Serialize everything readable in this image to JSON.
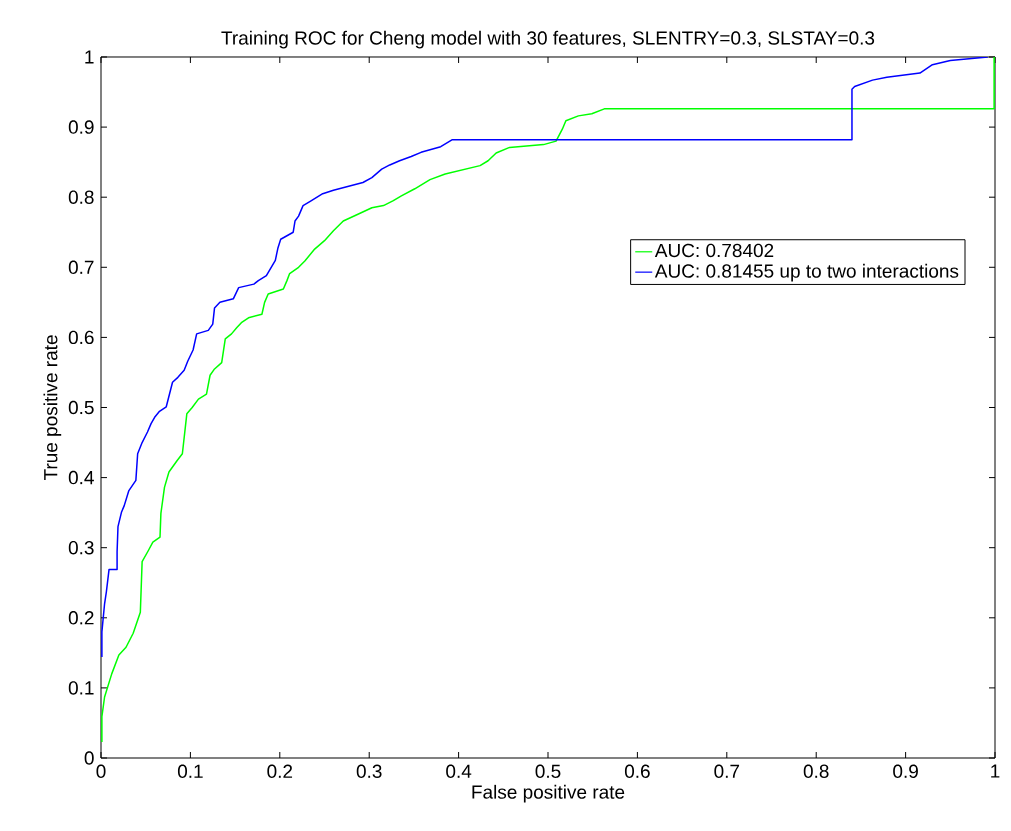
{
  "chart_data": {
    "type": "line",
    "title": "Training ROC  for Cheng model with 30 features, SLENTRY=0.3, SLSTAY=0.3",
    "xlabel": "False positive rate",
    "ylabel": "True positive rate",
    "xlim": [
      0,
      1
    ],
    "ylim": [
      0,
      1
    ],
    "xticks": [
      0,
      0.1,
      0.2,
      0.3,
      0.4,
      0.5,
      0.6,
      0.7,
      0.8,
      0.9,
      1
    ],
    "yticks": [
      0,
      0.1,
      0.2,
      0.3,
      0.4,
      0.5,
      0.6,
      0.7,
      0.8,
      0.9,
      1
    ],
    "legend": "top right",
    "grid": false,
    "marker": "none",
    "line_style": "solid",
    "series": [
      {
        "name": "AUC: 0.78402",
        "color": "#00ff00",
        "x": [
          0.001,
          0.001,
          0.004,
          0.012,
          0.02,
          0.028,
          0.036,
          0.044,
          0.046,
          0.053,
          0.058,
          0.066,
          0.067,
          0.071,
          0.076,
          0.085,
          0.091,
          0.096,
          0.102,
          0.109,
          0.118,
          0.122,
          0.127,
          0.135,
          0.139,
          0.146,
          0.152,
          0.157,
          0.165,
          0.18,
          0.183,
          0.187,
          0.204,
          0.208,
          0.211,
          0.221,
          0.228,
          0.239,
          0.25,
          0.26,
          0.271,
          0.288,
          0.303,
          0.316,
          0.327,
          0.336,
          0.351,
          0.368,
          0.385,
          0.424,
          0.433,
          0.442,
          0.457,
          0.495,
          0.509,
          0.516,
          0.52,
          0.534,
          0.549,
          0.563,
          0.999,
          0.999
        ],
        "values": [
          0.023,
          0.059,
          0.087,
          0.12,
          0.147,
          0.158,
          0.178,
          0.208,
          0.28,
          0.296,
          0.308,
          0.315,
          0.349,
          0.386,
          0.408,
          0.424,
          0.434,
          0.491,
          0.5,
          0.512,
          0.519,
          0.546,
          0.555,
          0.564,
          0.598,
          0.605,
          0.614,
          0.621,
          0.628,
          0.633,
          0.65,
          0.662,
          0.669,
          0.681,
          0.691,
          0.7,
          0.709,
          0.726,
          0.738,
          0.752,
          0.766,
          0.776,
          0.785,
          0.788,
          0.795,
          0.802,
          0.812,
          0.825,
          0.833,
          0.845,
          0.852,
          0.863,
          0.871,
          0.875,
          0.88,
          0.897,
          0.909,
          0.916,
          0.919,
          0.926,
          0.926,
          1
        ]
      },
      {
        "name": "AUC: 0.81455 up to two interactions",
        "color": "#0000ff",
        "x": [
          0.001,
          0.001,
          0.004,
          0.006,
          0.009,
          0.018,
          0.018,
          0.019,
          0.023,
          0.026,
          0.031,
          0.039,
          0.041,
          0.046,
          0.052,
          0.056,
          0.06,
          0.065,
          0.073,
          0.08,
          0.086,
          0.093,
          0.097,
          0.103,
          0.107,
          0.12,
          0.125,
          0.127,
          0.133,
          0.148,
          0.154,
          0.171,
          0.176,
          0.185,
          0.195,
          0.198,
          0.201,
          0.215,
          0.217,
          0.221,
          0.226,
          0.234,
          0.248,
          0.26,
          0.293,
          0.303,
          0.314,
          0.323,
          0.334,
          0.347,
          0.358,
          0.38,
          0.393,
          0.84,
          0.84,
          0.843,
          0.863,
          0.879,
          0.916,
          0.93,
          0.95,
          0.974,
          0.992
        ],
        "values": [
          0.144,
          0.18,
          0.22,
          0.237,
          0.269,
          0.269,
          0.294,
          0.33,
          0.351,
          0.36,
          0.381,
          0.396,
          0.434,
          0.45,
          0.465,
          0.477,
          0.486,
          0.494,
          0.501,
          0.536,
          0.543,
          0.553,
          0.566,
          0.582,
          0.605,
          0.61,
          0.619,
          0.642,
          0.65,
          0.655,
          0.671,
          0.676,
          0.681,
          0.688,
          0.71,
          0.728,
          0.74,
          0.75,
          0.766,
          0.773,
          0.788,
          0.794,
          0.805,
          0.81,
          0.821,
          0.828,
          0.84,
          0.846,
          0.852,
          0.858,
          0.864,
          0.872,
          0.882,
          0.882,
          0.954,
          0.958,
          0.967,
          0.971,
          0.977,
          0.989,
          0.995,
          0.998,
          1
        ]
      }
    ]
  }
}
